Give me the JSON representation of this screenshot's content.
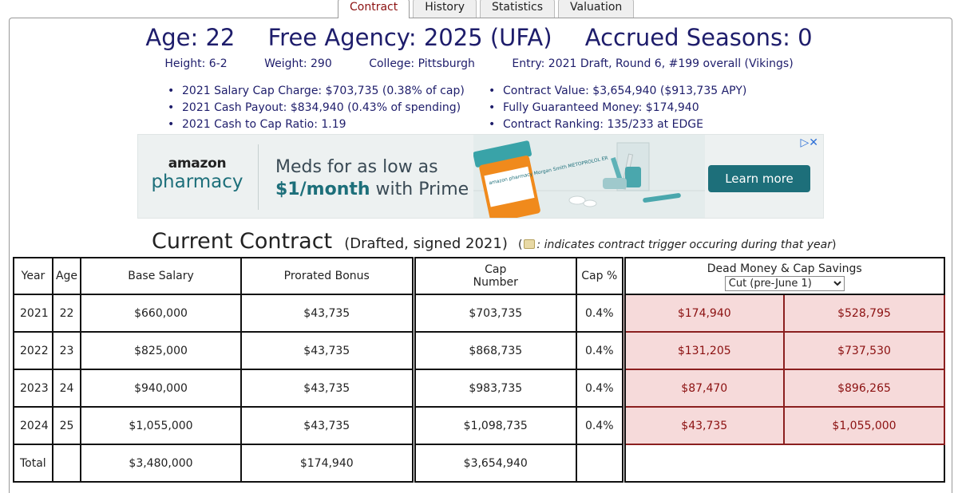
{
  "tabs": [
    {
      "label": "Contract",
      "active": true
    },
    {
      "label": "History",
      "active": false
    },
    {
      "label": "Statistics",
      "active": false
    },
    {
      "label": "Valuation",
      "active": false
    }
  ],
  "headline": {
    "age": "Age: 22",
    "free_agency": "Free Agency: 2025 (UFA)",
    "accrued": "Accrued Seasons: 0"
  },
  "subline": {
    "height": "Height: 6-2",
    "weight": "Weight: 290",
    "college": "College: Pittsburgh",
    "entry": "Entry: 2021 Draft, Round 6, #199 overall (Vikings)"
  },
  "bullets_left": [
    "2021 Salary Cap Charge: $703,735 (0.38% of cap)",
    "2021 Cash Payout: $834,940 (0.43% of spending)",
    "2021 Cash to Cap Ratio: 1.19"
  ],
  "bullets_right": [
    "Contract Value: $3,654,940 ($913,735 APY)",
    "Fully Guaranteed Money: $174,940",
    "Contract Ranking: 135/233 at EDGE"
  ],
  "ad": {
    "brand_top": "amazon",
    "brand_bottom": "pharmacy",
    "line1": "Meds for as low as",
    "line2_strong": "$1/month",
    "line2_rest": " with Prime",
    "button": "Learn more",
    "choices": "▷✕",
    "bottle_label": "amazon pharmacy Morgan Smith METOPROLOL ER"
  },
  "contract_heading": {
    "title": "Current Contract",
    "subtitle": "(Drafted, signed 2021)",
    "note_open": "(",
    "note_text": ": indicates contract trigger occuring during that year",
    "note_close": ")"
  },
  "table": {
    "headers": {
      "year": "Year",
      "age": "Age",
      "base": "Base Salary",
      "bonus": "Prorated Bonus",
      "cap_line1": "Cap",
      "cap_line2": "Number",
      "cap_pct": "Cap %",
      "dead": "Dead Money & Cap Savings",
      "select_value": "Cut (pre-June 1)"
    },
    "rows": [
      {
        "year": "2021",
        "age": "22",
        "base": "$660,000",
        "bonus": "$43,735",
        "cap": "$703,735",
        "pct": "0.4%",
        "dead": "$174,940",
        "savings": "$528,795"
      },
      {
        "year": "2022",
        "age": "23",
        "base": "$825,000",
        "bonus": "$43,735",
        "cap": "$868,735",
        "pct": "0.4%",
        "dead": "$131,205",
        "savings": "$737,530"
      },
      {
        "year": "2023",
        "age": "24",
        "base": "$940,000",
        "bonus": "$43,735",
        "cap": "$983,735",
        "pct": "0.4%",
        "dead": "$87,470",
        "savings": "$896,265"
      },
      {
        "year": "2024",
        "age": "25",
        "base": "$1,055,000",
        "bonus": "$43,735",
        "cap": "$1,098,735",
        "pct": "0.4%",
        "dead": "$43,735",
        "savings": "$1,055,000"
      }
    ],
    "total": {
      "label": "Total",
      "base": "$3,480,000",
      "bonus": "$174,940",
      "cap": "$3,654,940"
    }
  }
}
